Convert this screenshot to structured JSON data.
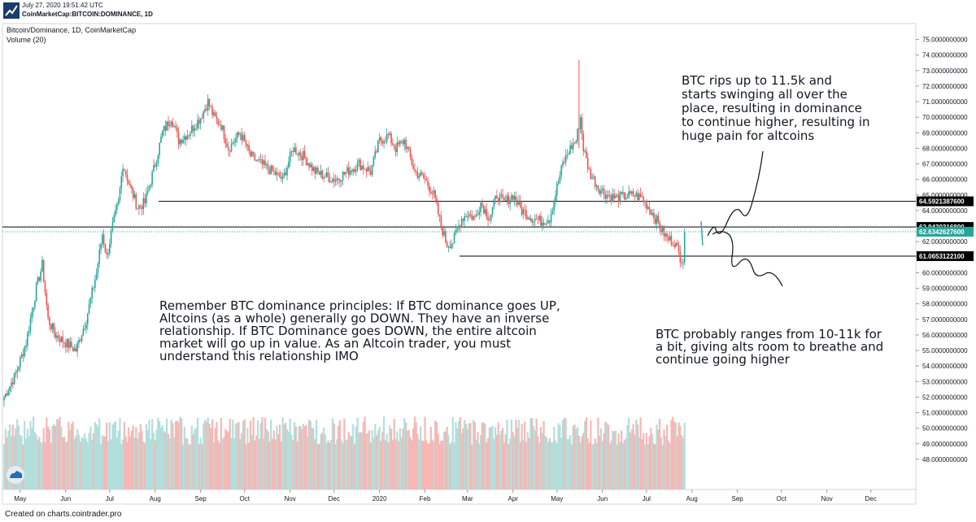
{
  "header": {
    "timestamp": "July 27, 2020 19:51:42 UTC",
    "symbol": "CoinMarketCap:BITCOIN:DOMINANCE, 1D"
  },
  "footer": {
    "text": "Created on charts.cointrader.pro"
  },
  "colors": {
    "up": "#26a69a",
    "down": "#ef5350",
    "volume_up": "#b2dfdb",
    "volume_down": "#f7b7b5",
    "line": "#000000",
    "current_price": "#26a69a",
    "background": "#ffffff"
  },
  "icons": {
    "logo": "dominance-grid-icon",
    "watermark": "tradingview-cloud-icon"
  },
  "chart_data": {
    "type": "candlestick",
    "title": "Bitcoin/Dominance, 1D, CoinMarketCap",
    "volume_label": "Volume (20)",
    "ylim": [
      47,
      75.5
    ],
    "y_ticks": [
      "75.0000000000",
      "74.0000000000",
      "73.0000000000",
      "72.0000000000",
      "71.0000000000",
      "70.0000000000",
      "69.0000000000",
      "68.0000000000",
      "67.0000000000",
      "66.0000000000",
      "65.0000000000",
      "64.0000000000",
      "63.0000000000",
      "62.0000000000",
      "61.0000000000",
      "60.0000000000",
      "59.0000000000",
      "58.0000000000",
      "57.0000000000",
      "56.0000000000",
      "55.0000000000",
      "54.0000000000",
      "53.0000000000",
      "52.0000000000",
      "51.0000000000",
      "50.0000000000",
      "49.0000000000",
      "48.0000000000"
    ],
    "x_ticks": [
      "May",
      "Jun",
      "Jul",
      "Aug",
      "Sep",
      "Oct",
      "Nov",
      "Dec",
      "2020",
      "Feb",
      "Mar",
      "Apr",
      "May",
      "Jun",
      "Jul",
      "Aug",
      "Sep",
      "Oct",
      "Nov",
      "Dec"
    ],
    "close_series": [
      {
        "date": "2019-04-20",
        "value": 52.0
      },
      {
        "date": "2019-04-28",
        "value": 53.5
      },
      {
        "date": "2019-05-05",
        "value": 55.5
      },
      {
        "date": "2019-05-12",
        "value": 59.0
      },
      {
        "date": "2019-05-16",
        "value": 60.5
      },
      {
        "date": "2019-05-20",
        "value": 57.0
      },
      {
        "date": "2019-05-25",
        "value": 56.0
      },
      {
        "date": "2019-06-01",
        "value": 55.5
      },
      {
        "date": "2019-06-08",
        "value": 55.0
      },
      {
        "date": "2019-06-15",
        "value": 57.0
      },
      {
        "date": "2019-06-22",
        "value": 60.0
      },
      {
        "date": "2019-06-26",
        "value": 62.5
      },
      {
        "date": "2019-06-29",
        "value": 61.0
      },
      {
        "date": "2019-07-03",
        "value": 63.0
      },
      {
        "date": "2019-07-07",
        "value": 64.5
      },
      {
        "date": "2019-07-10",
        "value": 67.0
      },
      {
        "date": "2019-07-15",
        "value": 65.5
      },
      {
        "date": "2019-07-20",
        "value": 64.2
      },
      {
        "date": "2019-07-25",
        "value": 64.5
      },
      {
        "date": "2019-08-01",
        "value": 67.0
      },
      {
        "date": "2019-08-06",
        "value": 69.0
      },
      {
        "date": "2019-08-12",
        "value": 70.0
      },
      {
        "date": "2019-08-17",
        "value": 68.5
      },
      {
        "date": "2019-08-24",
        "value": 69.0
      },
      {
        "date": "2019-09-01",
        "value": 70.0
      },
      {
        "date": "2019-09-06",
        "value": 71.0
      },
      {
        "date": "2019-09-10",
        "value": 70.0
      },
      {
        "date": "2019-09-15",
        "value": 69.5
      },
      {
        "date": "2019-09-20",
        "value": 68.0
      },
      {
        "date": "2019-09-28",
        "value": 69.0
      },
      {
        "date": "2019-10-05",
        "value": 67.5
      },
      {
        "date": "2019-10-12",
        "value": 67.0
      },
      {
        "date": "2019-10-20",
        "value": 66.5
      },
      {
        "date": "2019-10-27",
        "value": 66.0
      },
      {
        "date": "2019-11-03",
        "value": 68.0
      },
      {
        "date": "2019-11-10",
        "value": 67.5
      },
      {
        "date": "2019-11-18",
        "value": 66.5
      },
      {
        "date": "2019-11-25",
        "value": 66.2
      },
      {
        "date": "2019-12-02",
        "value": 66.0
      },
      {
        "date": "2019-12-10",
        "value": 66.5
      },
      {
        "date": "2019-12-18",
        "value": 67.0
      },
      {
        "date": "2019-12-26",
        "value": 66.5
      },
      {
        "date": "2020-01-01",
        "value": 68.5
      },
      {
        "date": "2020-01-07",
        "value": 68.8
      },
      {
        "date": "2020-01-12",
        "value": 68.0
      },
      {
        "date": "2020-01-18",
        "value": 68.5
      },
      {
        "date": "2020-01-25",
        "value": 66.5
      },
      {
        "date": "2020-02-01",
        "value": 66.0
      },
      {
        "date": "2020-02-07",
        "value": 65.0
      },
      {
        "date": "2020-02-12",
        "value": 63.0
      },
      {
        "date": "2020-02-16",
        "value": 61.8
      },
      {
        "date": "2020-02-20",
        "value": 62.0
      },
      {
        "date": "2020-02-26",
        "value": 63.5
      },
      {
        "date": "2020-03-01",
        "value": 63.8
      },
      {
        "date": "2020-03-06",
        "value": 63.5
      },
      {
        "date": "2020-03-10",
        "value": 64.5
      },
      {
        "date": "2020-03-16",
        "value": 63.5
      },
      {
        "date": "2020-03-21",
        "value": 65.0
      },
      {
        "date": "2020-03-26",
        "value": 64.5
      },
      {
        "date": "2020-04-01",
        "value": 65.0
      },
      {
        "date": "2020-04-07",
        "value": 64.0
      },
      {
        "date": "2020-04-13",
        "value": 63.6
      },
      {
        "date": "2020-04-20",
        "value": 63.3
      },
      {
        "date": "2020-04-26",
        "value": 63.5
      },
      {
        "date": "2020-05-01",
        "value": 65.5
      },
      {
        "date": "2020-05-05",
        "value": 67.0
      },
      {
        "date": "2020-05-10",
        "value": 68.0
      },
      {
        "date": "2020-05-14",
        "value": 68.5
      },
      {
        "date": "2020-05-17",
        "value": 70.0
      },
      {
        "date": "2020-05-19",
        "value": 68.0
      },
      {
        "date": "2020-05-23",
        "value": 66.5
      },
      {
        "date": "2020-05-29",
        "value": 65.5
      },
      {
        "date": "2020-06-04",
        "value": 65.0
      },
      {
        "date": "2020-06-10",
        "value": 64.8
      },
      {
        "date": "2020-06-16",
        "value": 64.9
      },
      {
        "date": "2020-06-22",
        "value": 65.0
      },
      {
        "date": "2020-06-28",
        "value": 64.8
      },
      {
        "date": "2020-07-04",
        "value": 64.0
      },
      {
        "date": "2020-07-10",
        "value": 63.0
      },
      {
        "date": "2020-07-15",
        "value": 62.2
      },
      {
        "date": "2020-07-20",
        "value": 62.0
      },
      {
        "date": "2020-07-24",
        "value": 61.0
      },
      {
        "date": "2020-07-26",
        "value": 60.9
      },
      {
        "date": "2020-07-27",
        "value": 62.6
      }
    ],
    "spikes": [
      {
        "date": "2020-05-16",
        "high": 73.7
      }
    ],
    "horizontal_levels": [
      {
        "value": 64.59213876,
        "label": "64.5921387600"
      },
      {
        "value": 62.94303168,
        "label": "62.9430316800"
      },
      {
        "value": 61.06531221,
        "label": "61.0653122100"
      }
    ],
    "current_price": {
      "value": 62.63426276,
      "label": "62.6342627600"
    },
    "annotations": [
      {
        "lines": [
          "BTC rips up to 11.5k and",
          "starts swinging all over the",
          "place, resulting in dominance",
          "to continue higher, resulting in",
          "huge pain for altcoins"
        ]
      },
      {
        "lines": [
          "Remember BTC dominance principles: If BTC dominance goes UP,",
          "Altcoins (as a whole) generally go DOWN. They have an inverse",
          "relationship. If BTC Dominance goes DOWN, the entire altcoin",
          "market will go up in value. As an Altcoin trader, you must",
          "understand this relationship IMO"
        ]
      },
      {
        "lines": [
          "BTC probably ranges from 10-11k for",
          "a bit, giving alts room to breathe and",
          "continue going higher"
        ]
      }
    ]
  }
}
